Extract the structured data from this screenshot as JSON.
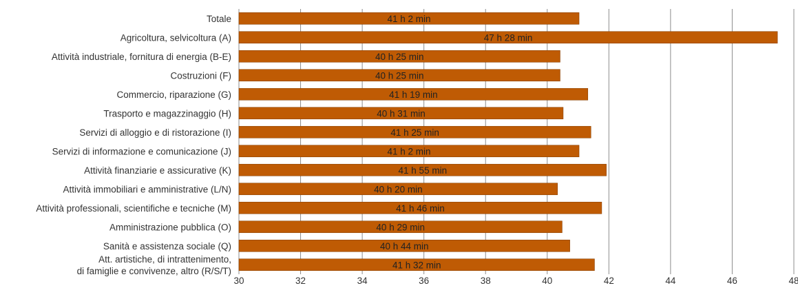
{
  "chart_data": {
    "type": "bar",
    "orientation": "horizontal",
    "categories": [
      "Totale",
      "Agricoltura, selvicoltura (A)",
      "Attività industriale, fornitura di energia (B-E)",
      "Costruzioni (F)",
      "Commercio, riparazione (G)",
      "Trasporto e magazzinaggio (H)",
      "Servizi di alloggio e di ristorazione (I)",
      "Servizi di informazione e comunicazione (J)",
      "Attività finanziarie e assicurative (K)",
      "Attività immobiliari e amministrative (L/N)",
      "Attività professionali, scientifiche e tecniche (M)",
      "Amministrazione pubblica (O)",
      "Sanità e assistenza sociale (Q)",
      [
        "Att. artistiche, di intrattenimento,",
        "di famiglie e convivenze, altro (R/S/T)"
      ]
    ],
    "values": [
      41.033,
      47.467,
      40.417,
      40.417,
      41.317,
      40.517,
      41.417,
      41.033,
      41.917,
      40.333,
      41.767,
      40.483,
      40.733,
      41.533
    ],
    "data_labels": [
      "41 h 2 min",
      "47 h 28 min",
      "40 h 25 min",
      "40 h 25 min",
      "41 h 19 min",
      "40 h 31 min",
      "41 h 25 min",
      "41 h 2 min",
      "41 h 55 min",
      "40 h 20 min",
      "41 h 46 min",
      "40 h 29 min",
      "40 h 44 min",
      "41 h 32 min"
    ],
    "xlim": [
      30,
      48
    ],
    "xticks": [
      "30",
      "32",
      "34",
      "36",
      "38",
      "40",
      "42",
      "44",
      "46",
      "48"
    ],
    "grid": "vertical",
    "title": "",
    "xlabel": "",
    "ylabel": "",
    "colors": {
      "bar": "#BF5B04",
      "bar_edge": "#8A3F00",
      "grid": "#8C8C8C",
      "text": "#333333"
    }
  }
}
